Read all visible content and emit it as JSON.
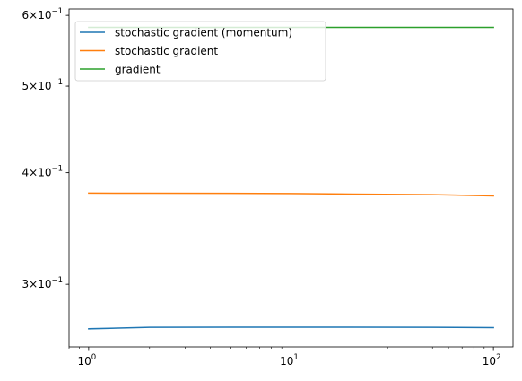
{
  "chart_data": {
    "type": "line",
    "title": "",
    "xlabel": "",
    "ylabel": "",
    "xscale": "log",
    "yscale": "log",
    "xlim": [
      0.8,
      125
    ],
    "ylim": [
      0.2553,
      0.61
    ],
    "grid": false,
    "legend_position": "top-left",
    "x": [
      1,
      2,
      5,
      10,
      20,
      50,
      100
    ],
    "series": [
      {
        "name": "stochastic gradient (momentum)",
        "color": "#1f77b4",
        "values": [
          0.2675,
          0.2685,
          0.2686,
          0.2686,
          0.2686,
          0.2685,
          0.2683
        ]
      },
      {
        "name": "stochastic gradient",
        "color": "#ff7f0e",
        "values": [
          0.3795,
          0.3794,
          0.3793,
          0.3791,
          0.3786,
          0.378,
          0.3768
        ]
      },
      {
        "name": "gradient",
        "color": "#2ca02c",
        "values": [
          0.5818,
          0.5818,
          0.5818,
          0.5818,
          0.5818,
          0.5818,
          0.5818
        ]
      }
    ],
    "x_ticks": [
      {
        "value": 1,
        "base": "10",
        "exp": "0"
      },
      {
        "value": 10,
        "base": "10",
        "exp": "1"
      },
      {
        "value": 100,
        "base": "10",
        "exp": "2"
      }
    ],
    "y_ticks": [
      {
        "value": 0.3,
        "mantissa": "3",
        "base": "10",
        "exp": "−1"
      },
      {
        "value": 0.4,
        "mantissa": "4",
        "base": "10",
        "exp": "−1"
      },
      {
        "value": 0.5,
        "mantissa": "5",
        "base": "10",
        "exp": "−1"
      },
      {
        "value": 0.6,
        "mantissa": "6",
        "base": "10",
        "exp": "−1"
      }
    ]
  }
}
